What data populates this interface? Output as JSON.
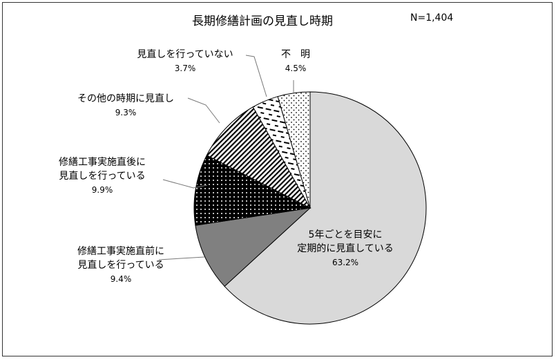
{
  "chart_data": {
    "type": "pie",
    "title": "長期修繕計画の見直し時期",
    "n_label": "N=1,404",
    "start": "12 o'clock",
    "direction": "clockwise",
    "slices": [
      {
        "label_lines": [
          "5年ごとを目安に",
          "定期的に見直している"
        ],
        "value": 63.2,
        "pct_text": "63.2%",
        "fill": "#d9d9d9",
        "pattern": "none"
      },
      {
        "label_lines": [
          "修繕工事実施直前に",
          "見直しを行っている"
        ],
        "value": 9.4,
        "pct_text": "9.4%",
        "fill": "#808080",
        "pattern": "none"
      },
      {
        "label_lines": [
          "修繕工事実施直後に",
          "見直しを行っている"
        ],
        "value": 9.9,
        "pct_text": "9.9%",
        "fill": "#000000",
        "pattern": "white-dots"
      },
      {
        "label_lines": [
          "その他の時期に見直し"
        ],
        "value": 9.3,
        "pct_text": "9.3%",
        "fill": "#ffffff",
        "pattern": "diagonal-stripes"
      },
      {
        "label_lines": [
          "見直しを行っていない"
        ],
        "value": 3.7,
        "pct_text": "3.7%",
        "fill": "#ffffff",
        "pattern": "dashes"
      },
      {
        "label_lines": [
          "不　明"
        ],
        "value": 4.5,
        "pct_text": "4.5%",
        "fill": "#ffffff",
        "pattern": "dots"
      }
    ]
  }
}
